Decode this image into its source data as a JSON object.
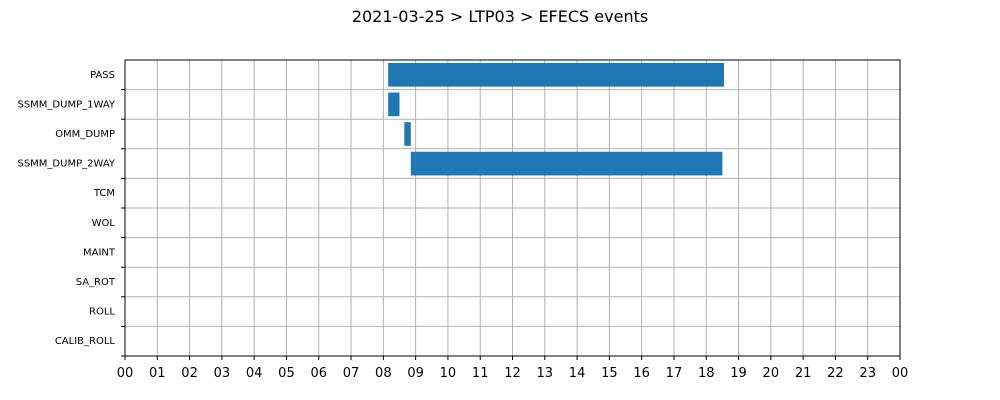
{
  "chart_data": {
    "type": "bar",
    "orientation": "horizontal",
    "title": "2021-03-25 > LTP03 > EFECS events",
    "xlabel": "",
    "ylabel": "",
    "xlim": [
      0,
      24
    ],
    "x_ticks": [
      0,
      1,
      2,
      3,
      4,
      5,
      6,
      7,
      8,
      9,
      10,
      11,
      12,
      13,
      14,
      15,
      16,
      17,
      18,
      19,
      20,
      21,
      22,
      23,
      24
    ],
    "x_tick_labels": [
      "00",
      "01",
      "02",
      "03",
      "04",
      "05",
      "06",
      "07",
      "08",
      "09",
      "10",
      "11",
      "12",
      "13",
      "14",
      "15",
      "16",
      "17",
      "18",
      "19",
      "20",
      "21",
      "22",
      "23",
      "00"
    ],
    "categories": [
      "PASS",
      "SSMM_DUMP_1WAY",
      "OMM_DUMP",
      "SSMM_DUMP_2WAY",
      "TCM",
      "WOL",
      "MAINT",
      "SA_ROT",
      "ROLL",
      "CALIB_ROLL"
    ],
    "bars": [
      {
        "category": "PASS",
        "start": 8.15,
        "end": 18.55
      },
      {
        "category": "SSMM_DUMP_1WAY",
        "start": 8.15,
        "end": 8.5
      },
      {
        "category": "OMM_DUMP",
        "start": 8.65,
        "end": 8.85
      },
      {
        "category": "SSMM_DUMP_2WAY",
        "start": 8.85,
        "end": 18.5
      }
    ],
    "bar_color": "#1f77b4",
    "grid": true,
    "legend": "none"
  }
}
